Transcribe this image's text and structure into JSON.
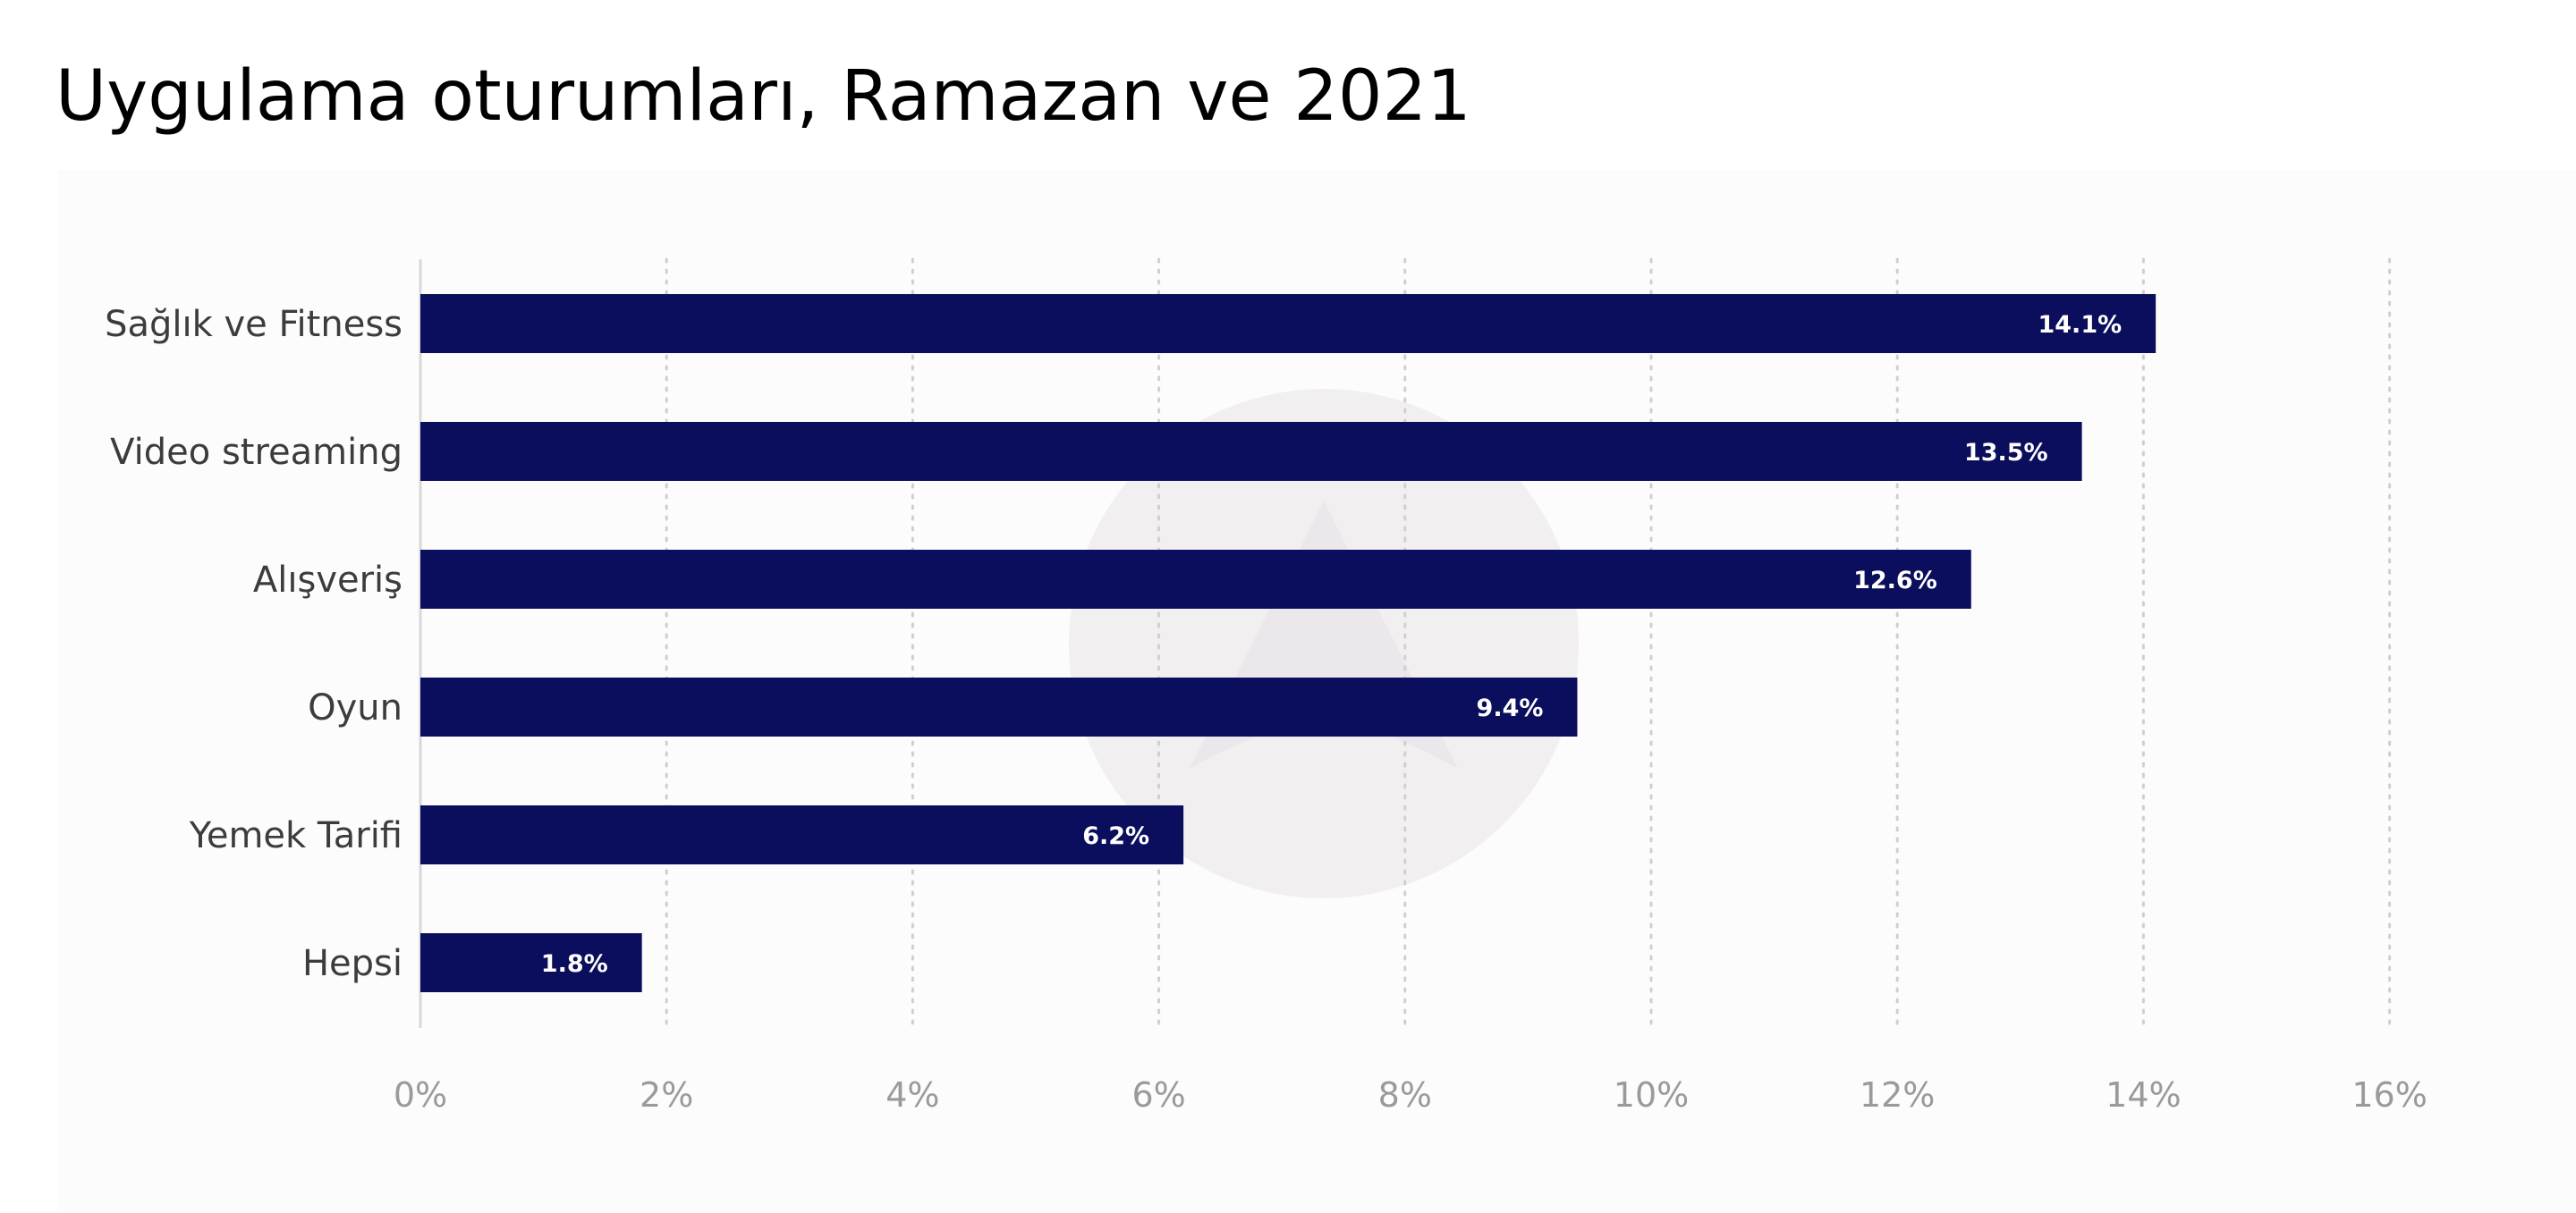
{
  "title": "Uygulama oturumları, Ramazan ve 2021",
  "colors": {
    "bar": "#0a0e5c",
    "grid": "#cfcfcf",
    "axis": "#d9d9d9",
    "data_label": "#ffffff",
    "watermark": "#f2eff1"
  },
  "watermark_icon": "logo-watermark-icon",
  "chart_data": {
    "type": "bar",
    "orientation": "horizontal",
    "categories": [
      "Sağlık ve Fitness",
      "Video streaming",
      "Alışveriş",
      "Oyun",
      "Yemek Tarifi",
      "Hepsi"
    ],
    "values": [
      14.1,
      13.5,
      12.6,
      9.4,
      6.2,
      1.8
    ],
    "value_labels": [
      "14.1%",
      "13.5%",
      "12.6%",
      "9.4%",
      "6.2%",
      "1.8%"
    ],
    "xlim": [
      0,
      16
    ],
    "xticks": [
      0,
      2,
      4,
      6,
      8,
      10,
      12,
      14,
      16
    ],
    "xtick_labels": [
      "0%",
      "2%",
      "4%",
      "6%",
      "8%",
      "10%",
      "12%",
      "14%",
      "16%"
    ],
    "xlabel": "",
    "ylabel": "",
    "grid": "vertical dotted",
    "legend": "none"
  }
}
